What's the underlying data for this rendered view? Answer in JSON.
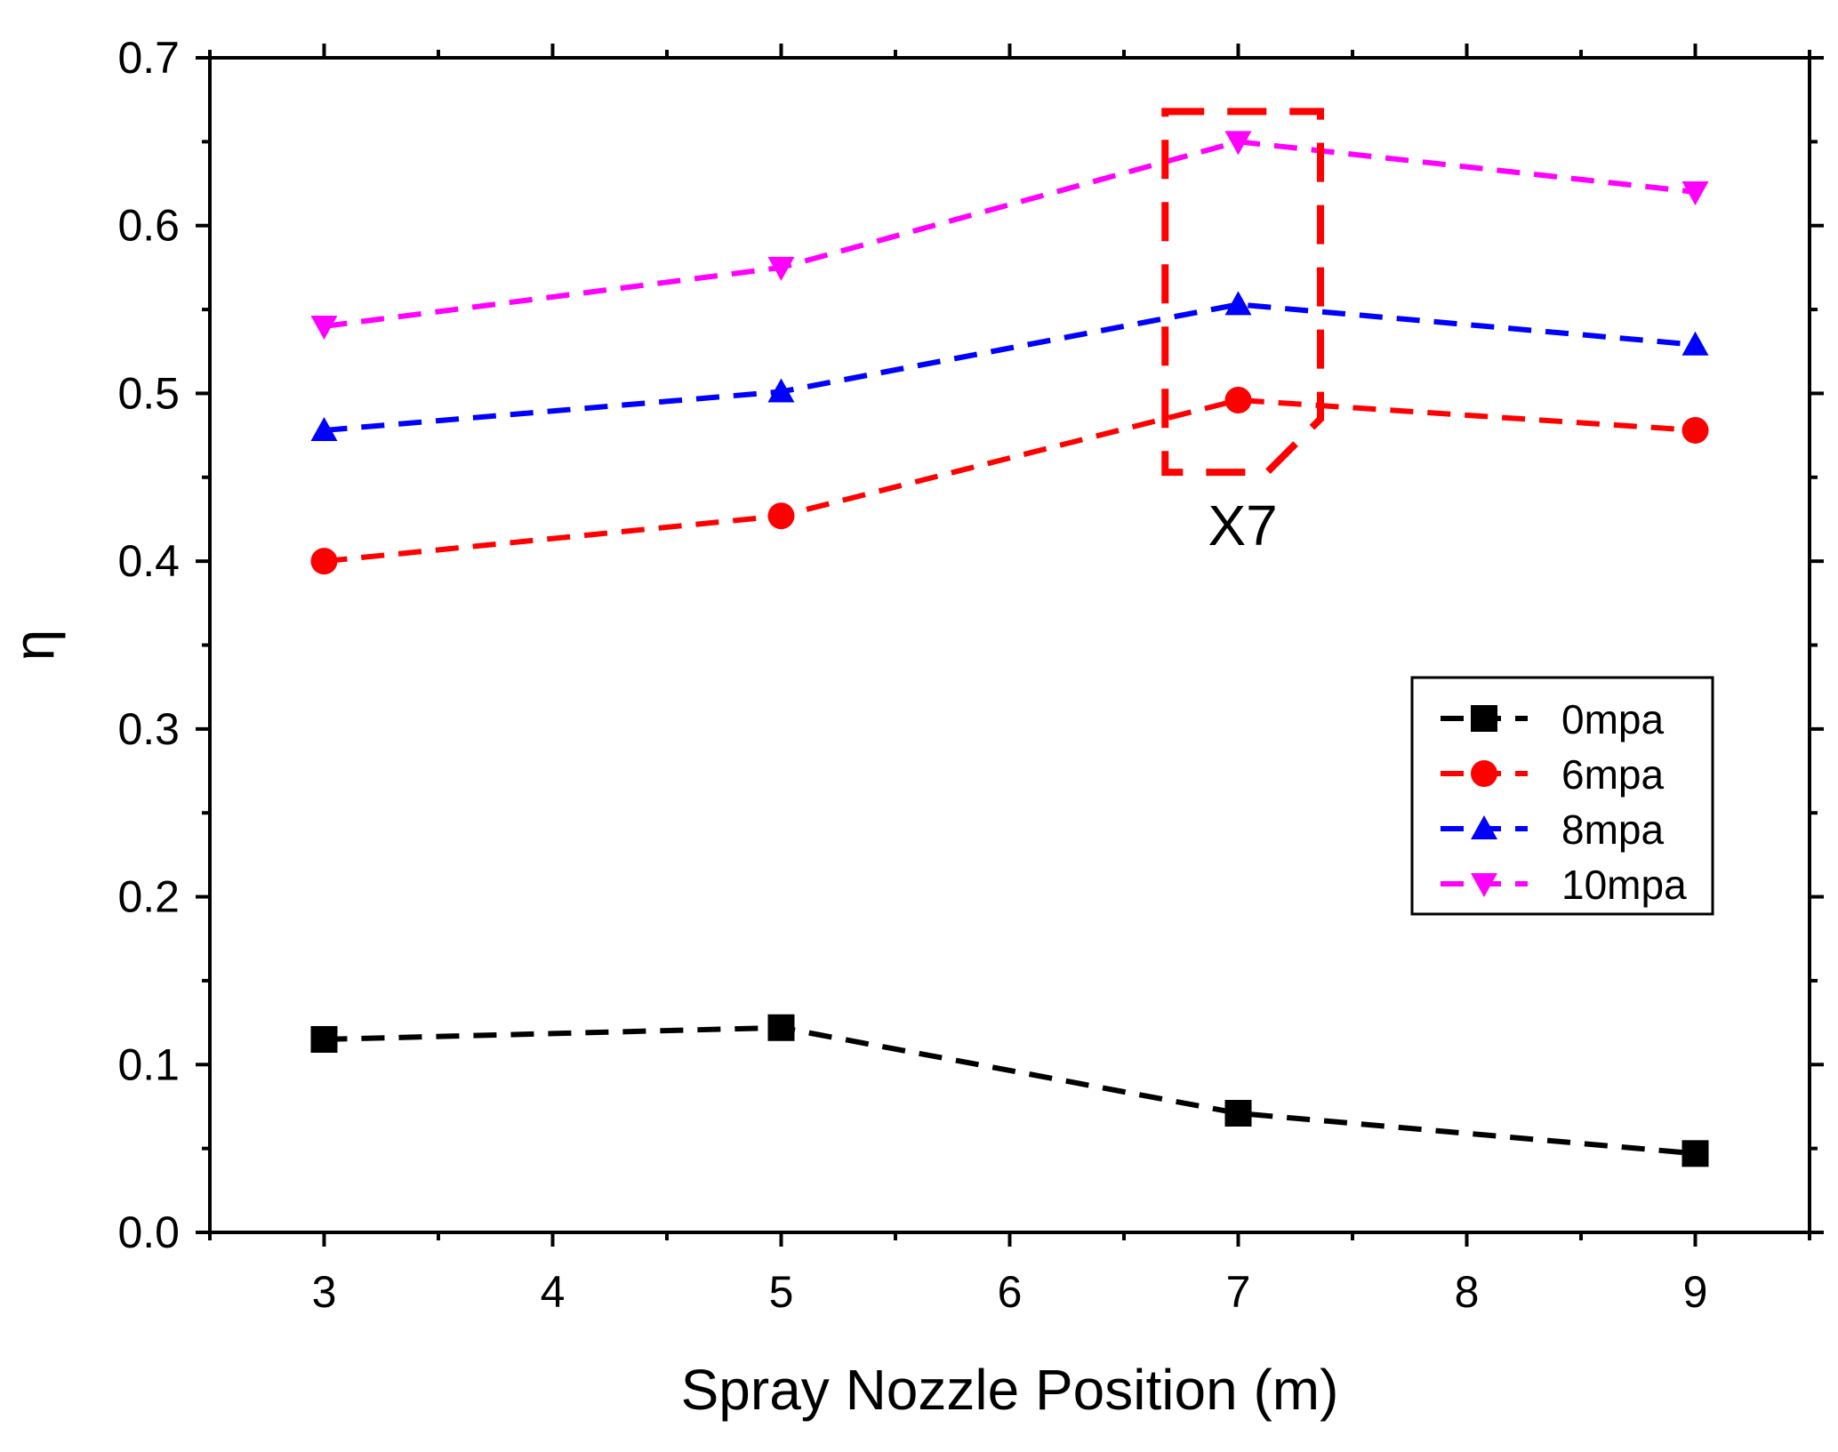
{
  "chart_data": {
    "type": "line",
    "title": "",
    "xlabel": "Spray Nozzle Position (m)",
    "ylabel": "η",
    "xlim": [
      2.5,
      9.5
    ],
    "ylim": [
      0.0,
      0.7
    ],
    "x_ticks": [
      3,
      4,
      5,
      6,
      7,
      8,
      9
    ],
    "x_tick_labels": [
      "3",
      "4",
      "5",
      "6",
      "7",
      "8",
      "9"
    ],
    "y_ticks": [
      0.0,
      0.1,
      0.2,
      0.3,
      0.4,
      0.5,
      0.6,
      0.7
    ],
    "y_tick_labels": [
      "0.0",
      "0.1",
      "0.2",
      "0.3",
      "0.4",
      "0.5",
      "0.6",
      "0.7"
    ],
    "grid": false,
    "legend_position": "center-right",
    "x": [
      3,
      5,
      7,
      9
    ],
    "series": [
      {
        "name": "0mpa",
        "color": "#000000",
        "marker": "square",
        "values": [
          0.115,
          0.122,
          0.071,
          0.047
        ]
      },
      {
        "name": "6mpa",
        "color": "#ff0000",
        "marker": "circle",
        "values": [
          0.4,
          0.427,
          0.496,
          0.478
        ]
      },
      {
        "name": "8mpa",
        "color": "#0000ff",
        "marker": "triangle-up",
        "values": [
          0.478,
          0.501,
          0.553,
          0.529
        ]
      },
      {
        "name": "10mpa",
        "color": "#ff00ff",
        "marker": "triangle-down",
        "values": [
          0.54,
          0.575,
          0.65,
          0.62
        ]
      }
    ],
    "annotations": [
      {
        "text": "X7",
        "type": "dashed-box",
        "color": "#ff0000",
        "x_range": [
          6.68,
          7.36
        ],
        "y_range": [
          0.453,
          0.668
        ]
      }
    ]
  }
}
